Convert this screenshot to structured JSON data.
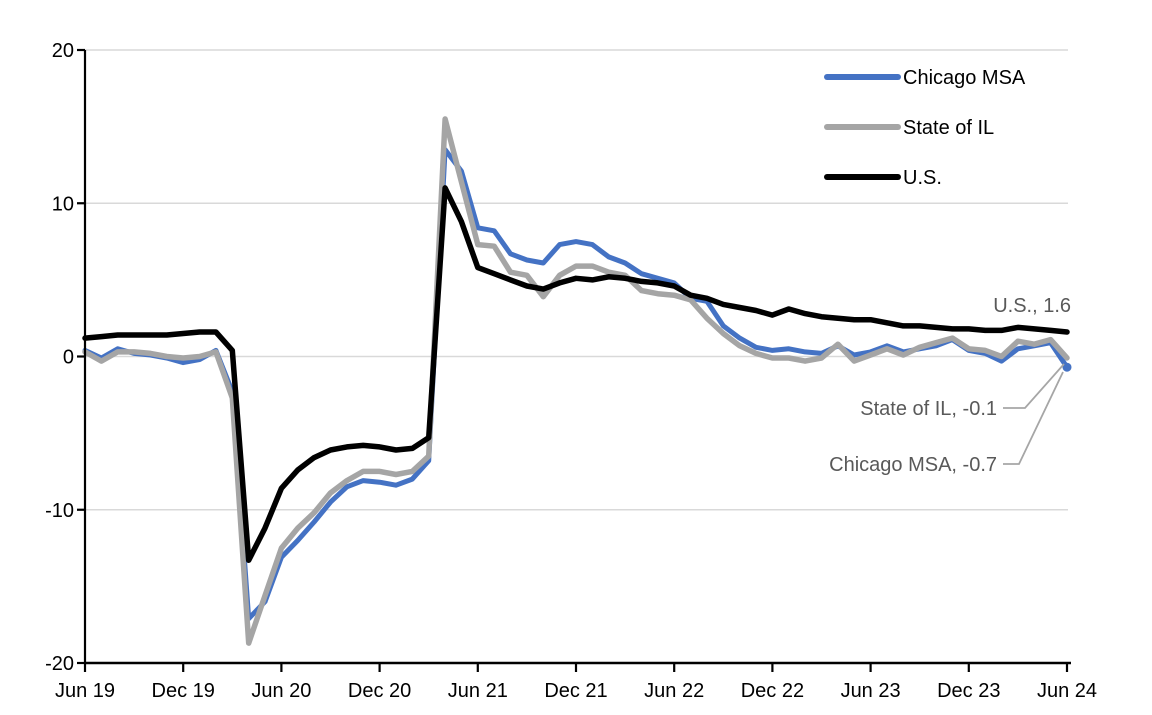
{
  "colors": {
    "background": "#FFFFFF",
    "gridline": "#D9D9D9",
    "axis": "#000000",
    "annotation_text": "#595959",
    "leader_line": "#A6A6A6",
    "chicago_blue": "#4472C4",
    "il_gray": "#A5A5A5",
    "us_black": "#000000"
  },
  "legend": {
    "items": [
      {
        "label": "Chicago MSA",
        "color": "#4472C4"
      },
      {
        "label": "State of IL",
        "color": "#A5A5A5"
      },
      {
        "label": "U.S.",
        "color": "#000000"
      }
    ]
  },
  "chart_data": {
    "type": "line",
    "title": "",
    "xlabel": "",
    "ylabel": "",
    "ylim": [
      -20,
      20
    ],
    "grid": "horizontal",
    "legend_position": "top-right",
    "yticks": [
      {
        "value": 20,
        "label": "20"
      },
      {
        "value": 10,
        "label": "10"
      },
      {
        "value": 0,
        "label": "0"
      },
      {
        "value": -10,
        "label": "-10"
      },
      {
        "value": -20,
        "label": "-20"
      }
    ],
    "xticks": [
      {
        "index": 0,
        "label": "Jun 19"
      },
      {
        "index": 6,
        "label": "Dec 19"
      },
      {
        "index": 12,
        "label": "Jun 20"
      },
      {
        "index": 18,
        "label": "Dec 20"
      },
      {
        "index": 24,
        "label": "Jun 21"
      },
      {
        "index": 30,
        "label": "Dec 21"
      },
      {
        "index": 36,
        "label": "Jun 22"
      },
      {
        "index": 42,
        "label": "Dec 22"
      },
      {
        "index": 48,
        "label": "Jun 23"
      },
      {
        "index": 54,
        "label": "Dec 23"
      },
      {
        "index": 60,
        "label": "Jun 24"
      }
    ],
    "categories": [
      "Jun 19",
      "Jul 19",
      "Aug 19",
      "Sep 19",
      "Oct 19",
      "Nov 19",
      "Dec 19",
      "Jan 20",
      "Feb 20",
      "Mar 20",
      "Apr 20",
      "May 20",
      "Jun 20",
      "Jul 20",
      "Aug 20",
      "Sep 20",
      "Oct 20",
      "Nov 20",
      "Dec 20",
      "Jan 21",
      "Feb 21",
      "Mar 21",
      "Apr 21",
      "May 21",
      "Jun 21",
      "Jul 21",
      "Aug 21",
      "Sep 21",
      "Oct 21",
      "Nov 21",
      "Dec 21",
      "Jan 22",
      "Feb 22",
      "Mar 22",
      "Apr 22",
      "May 22",
      "Jun 22",
      "Jul 22",
      "Aug 22",
      "Sep 22",
      "Oct 22",
      "Nov 22",
      "Dec 22",
      "Jan 23",
      "Feb 23",
      "Mar 23",
      "Apr 23",
      "May 23",
      "Jun 23",
      "Jul 23",
      "Aug 23",
      "Sep 23",
      "Oct 23",
      "Nov 23",
      "Dec 23",
      "Jan 24",
      "Feb 24",
      "Mar 24",
      "Apr 24",
      "May 24",
      "Jun 24"
    ],
    "series": [
      {
        "name": "Chicago MSA",
        "color": "#4472C4",
        "stroke_width": 5,
        "end_marker": true,
        "values": [
          0.4,
          -0.1,
          0.5,
          0.2,
          0.1,
          -0.1,
          -0.4,
          -0.2,
          0.4,
          -2.3,
          -17.1,
          -16.0,
          -13.1,
          -12.0,
          -10.8,
          -9.5,
          -8.5,
          -8.1,
          -8.2,
          -8.4,
          -8.0,
          -6.8,
          13.5,
          12.1,
          8.4,
          8.2,
          6.7,
          6.3,
          6.1,
          7.3,
          7.5,
          7.3,
          6.5,
          6.1,
          5.4,
          5.1,
          4.8,
          3.8,
          3.6,
          2.0,
          1.2,
          0.6,
          0.4,
          0.5,
          0.3,
          0.2,
          0.7,
          0.1,
          0.3,
          0.7,
          0.3,
          0.5,
          0.7,
          1.1,
          0.4,
          0.2,
          -0.3,
          0.5,
          0.7,
          0.9,
          -0.7
        ]
      },
      {
        "name": "State of IL",
        "color": "#A5A5A5",
        "stroke_width": 5.5,
        "end_marker": false,
        "values": [
          0.3,
          -0.3,
          0.3,
          0.3,
          0.2,
          0.0,
          -0.1,
          0.0,
          0.3,
          -2.7,
          -18.7,
          -15.6,
          -12.5,
          -11.2,
          -10.2,
          -8.9,
          -8.1,
          -7.5,
          -7.5,
          -7.7,
          -7.5,
          -6.5,
          15.5,
          11.4,
          7.3,
          7.2,
          5.5,
          5.3,
          3.9,
          5.3,
          5.9,
          5.9,
          5.5,
          5.3,
          4.3,
          4.1,
          4.0,
          3.7,
          2.5,
          1.5,
          0.7,
          0.2,
          -0.1,
          -0.1,
          -0.3,
          -0.1,
          0.8,
          -0.3,
          0.1,
          0.5,
          0.1,
          0.6,
          0.9,
          1.2,
          0.5,
          0.4,
          0.0,
          1.0,
          0.8,
          1.1,
          -0.1
        ]
      },
      {
        "name": "U.S.",
        "color": "#000000",
        "stroke_width": 5.5,
        "end_marker": false,
        "values": [
          1.2,
          1.3,
          1.4,
          1.4,
          1.4,
          1.4,
          1.5,
          1.6,
          1.6,
          0.4,
          -13.3,
          -11.2,
          -8.6,
          -7.4,
          -6.6,
          -6.1,
          -5.9,
          -5.8,
          -5.9,
          -6.1,
          -6.0,
          -5.3,
          11.0,
          8.8,
          5.8,
          5.4,
          5.0,
          4.6,
          4.4,
          4.8,
          5.1,
          5.0,
          5.2,
          5.1,
          4.9,
          4.8,
          4.6,
          4.0,
          3.8,
          3.4,
          3.2,
          3.0,
          2.7,
          3.1,
          2.8,
          2.6,
          2.5,
          2.4,
          2.4,
          2.2,
          2.0,
          2.0,
          1.9,
          1.8,
          1.8,
          1.7,
          1.7,
          1.9,
          1.8,
          1.7,
          1.6
        ]
      }
    ],
    "end_labels": [
      {
        "series": "U.S.",
        "text": "U.S., 1.6",
        "value": 1.6
      },
      {
        "series": "State of IL",
        "text": "State of IL, -0.1",
        "value": -0.1
      },
      {
        "series": "Chicago MSA",
        "text": "Chicago MSA, -0.7",
        "value": -0.7
      }
    ]
  }
}
